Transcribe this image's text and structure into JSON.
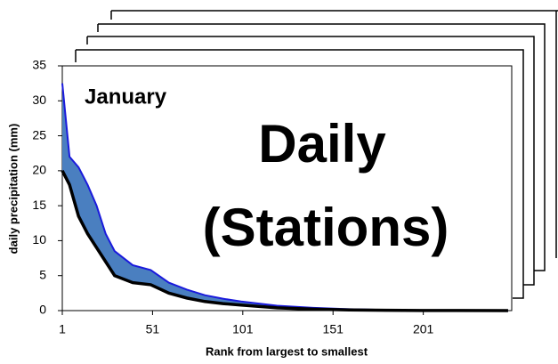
{
  "chart_data": {
    "type": "band",
    "annotations": [
      "January",
      "Daily",
      "(Stations)"
    ],
    "y_label": "daily precipitation (mm)",
    "x_label": "Rank from largest to smallest",
    "x": [
      1,
      5,
      10,
      15,
      20,
      25,
      30,
      40,
      50,
      60,
      70,
      80,
      90,
      100,
      120,
      140,
      160,
      180,
      200,
      220,
      248
    ],
    "series": [
      {
        "color": "#1a1adc",
        "values": [
          32.5,
          22,
          20.5,
          18,
          15,
          11,
          8.5,
          6.5,
          5.8,
          4,
          3,
          2.2,
          1.7,
          1.3,
          0.7,
          0.4,
          0.2,
          0.1,
          0.05,
          0.02,
          0
        ]
      },
      {
        "color": "#000000",
        "values": [
          20,
          18,
          13.5,
          11,
          9,
          7,
          5,
          4,
          3.7,
          2.5,
          1.8,
          1.3,
          1,
          0.8,
          0.4,
          0.2,
          0.1,
          0.05,
          0.02,
          0.01,
          0
        ]
      }
    ],
    "band_color": "#4a7fc0",
    "xlim": [
      1,
      250
    ],
    "xticks": [
      1,
      51,
      101,
      151,
      201
    ],
    "ylim": [
      0,
      35
    ],
    "yticks": [
      0,
      5,
      10,
      15,
      20,
      25,
      30,
      35
    ]
  }
}
